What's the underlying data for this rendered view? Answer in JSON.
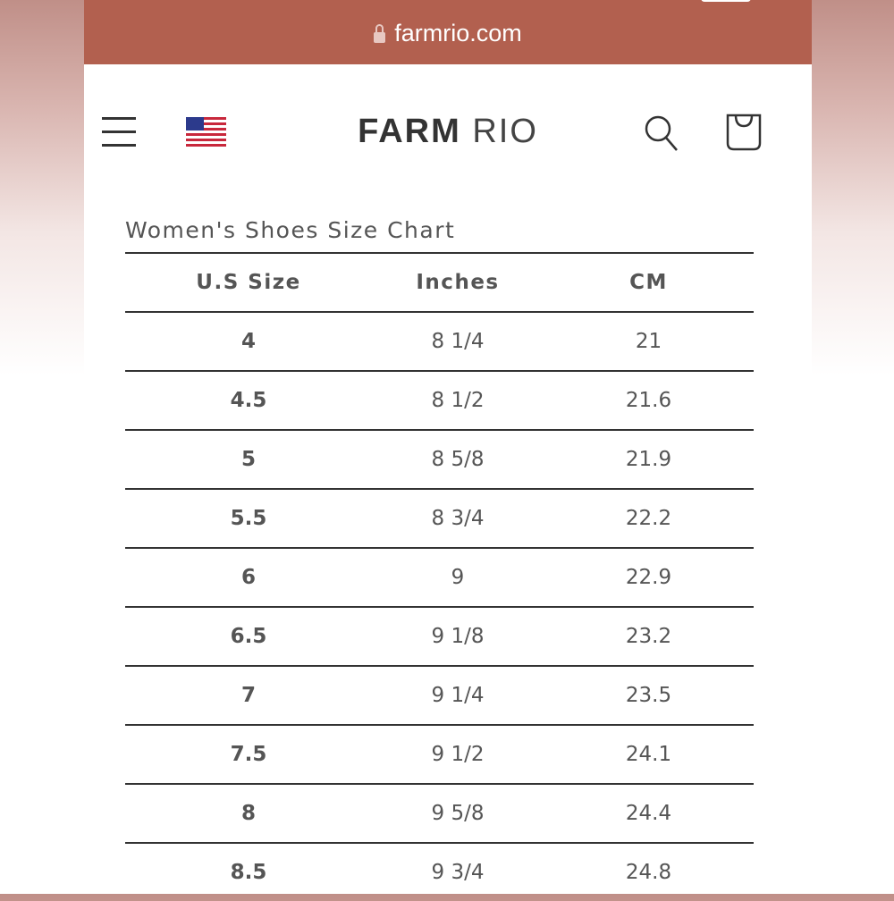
{
  "browser": {
    "url": "farmrio.com"
  },
  "header": {
    "logo_bold": "FARM",
    "logo_light": "RIO"
  },
  "chart": {
    "title": "Women's Shoes Size Chart",
    "columns": [
      "U.S Size",
      "Inches",
      "CM"
    ],
    "rows": [
      [
        "4",
        "8 1/4",
        "21"
      ],
      [
        "4.5",
        "8 1/2",
        "21.6"
      ],
      [
        "5",
        "8 5/8",
        "21.9"
      ],
      [
        "5.5",
        "8 3/4",
        "22.2"
      ],
      [
        "6",
        "9",
        "22.9"
      ],
      [
        "6.5",
        "9 1/8",
        "23.2"
      ],
      [
        "7",
        "9 1/4",
        "23.5"
      ],
      [
        "7.5",
        "9 1/2",
        "24.1"
      ],
      [
        "8",
        "9 5/8",
        "24.4"
      ],
      [
        "8.5",
        "9 3/4",
        "24.8"
      ]
    ]
  }
}
